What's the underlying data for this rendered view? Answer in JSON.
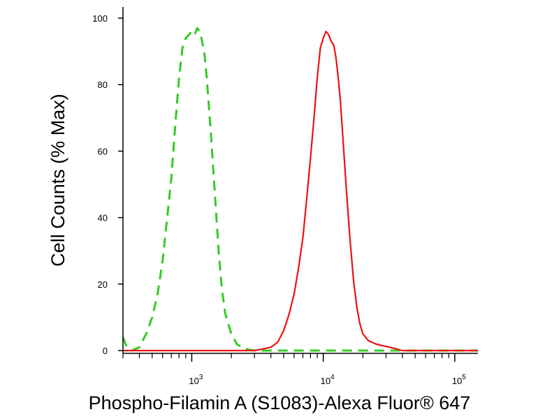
{
  "chart_data": {
    "type": "line",
    "xlabel": "Phospho-Filamin A (S1083)-Alexa Fluor® 647",
    "ylabel": "Cell Counts (% Max)",
    "x_scale": "log",
    "xlim": [
      300,
      150000
    ],
    "ylim": [
      0,
      100
    ],
    "x_ticks": [
      {
        "value": 1000,
        "base": "10",
        "exp": "3"
      },
      {
        "value": 10000,
        "base": "10",
        "exp": "4"
      },
      {
        "value": 100000,
        "base": "10",
        "exp": "5"
      }
    ],
    "y_ticks": [
      0,
      20,
      40,
      60,
      80,
      100
    ],
    "grid": false,
    "legend": "none",
    "series": [
      {
        "color": "#33cc22",
        "dash": "dashed",
        "x": [
          300,
          320,
          350,
          400,
          450,
          500,
          550,
          600,
          650,
          700,
          750,
          800,
          850,
          900,
          950,
          1000,
          1050,
          1100,
          1150,
          1200,
          1250,
          1300,
          1400,
          1500,
          1600,
          1700,
          1800,
          2000,
          2200,
          2500,
          3000,
          5000,
          10000,
          30000,
          100000,
          150000
        ],
        "y": [
          4,
          1,
          0,
          1,
          5,
          10,
          17,
          27,
          40,
          52,
          68,
          82,
          91,
          94,
          95,
          96,
          95,
          97,
          96,
          93,
          89,
          82,
          65,
          47,
          30,
          18,
          11,
          5,
          2,
          0.5,
          0,
          0,
          0,
          0,
          0,
          0
        ]
      },
      {
        "color": "#ee1111",
        "dash": "solid",
        "x": [
          300,
          2000,
          3000,
          3500,
          4000,
          4500,
          5000,
          5500,
          6000,
          6500,
          7000,
          7500,
          8000,
          8500,
          9000,
          9500,
          10000,
          10500,
          11000,
          11500,
          12000,
          12500,
          13000,
          13500,
          14000,
          15000,
          16000,
          17000,
          18000,
          19000,
          20000,
          22000,
          25000,
          28000,
          32000,
          36000,
          40000,
          50000,
          70000,
          100000,
          150000
        ],
        "y": [
          0,
          0,
          0,
          0.5,
          1,
          2.5,
          6,
          11,
          17,
          25,
          34,
          46,
          58,
          70,
          82,
          91,
          94,
          96,
          95,
          93,
          92,
          88,
          82,
          75,
          66,
          48,
          33,
          21,
          13,
          8,
          5,
          3,
          2,
          1.5,
          1,
          0.5,
          0,
          0,
          0,
          0,
          0
        ]
      }
    ]
  }
}
